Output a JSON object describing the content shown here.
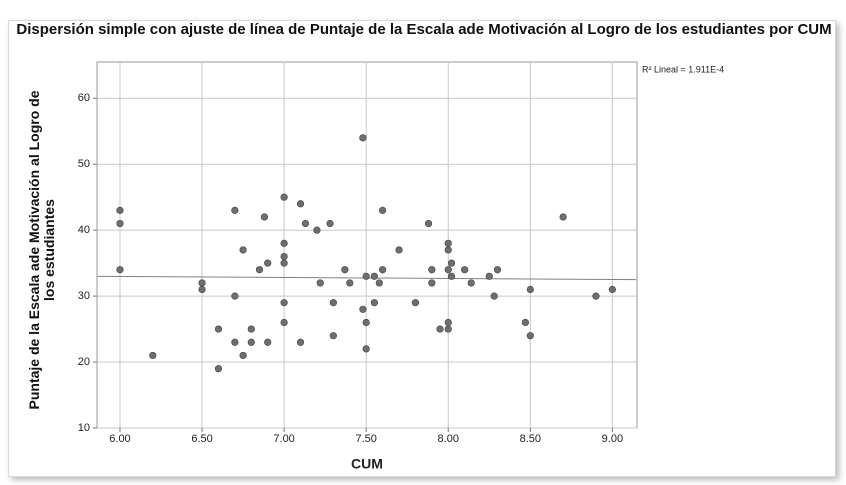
{
  "chart_data": {
    "type": "scatter",
    "title": "Dispersión simple con ajuste de línea de  Puntaje de la Escala ade Motivación al Logro de los estudiantes por CUM",
    "xlabel": "CUM",
    "ylabel": "Puntaje de la Escala ade Motivación al Logro de los estudiantes",
    "annotation": "R² Lineal = 1.911E-4",
    "color": "#6e6e6e",
    "grid": true,
    "xlim": [
      5.86,
      9.15
    ],
    "ylim": [
      10,
      65.5
    ],
    "xticks": [
      {
        "value": 6,
        "label": "6.00"
      },
      {
        "value": 6.5,
        "label": "6.50"
      },
      {
        "value": 7,
        "label": "7.00"
      },
      {
        "value": 7.5,
        "label": "7.50"
      },
      {
        "value": 8,
        "label": "8.00"
      },
      {
        "value": 8.5,
        "label": "8.50"
      },
      {
        "value": 9,
        "label": "9.00"
      }
    ],
    "yticks": [
      10,
      20,
      30,
      40,
      50,
      60
    ],
    "x": [
      6.0,
      6.0,
      6.0,
      6.2,
      6.5,
      6.5,
      6.6,
      6.6,
      6.7,
      6.7,
      6.7,
      6.75,
      6.75,
      6.8,
      6.8,
      6.85,
      6.88,
      6.9,
      6.9,
      7.0,
      7.0,
      7.0,
      7.0,
      7.0,
      7.0,
      7.1,
      7.1,
      7.13,
      7.2,
      7.22,
      7.28,
      7.3,
      7.3,
      7.37,
      7.4,
      7.48,
      7.48,
      7.5,
      7.5,
      7.5,
      7.55,
      7.55,
      7.58,
      7.6,
      7.6,
      7.7,
      7.8,
      7.88,
      7.9,
      7.9,
      7.95,
      8.0,
      8.0,
      8.0,
      8.0,
      8.0,
      8.02,
      8.02,
      8.1,
      8.14,
      8.25,
      8.28,
      8.3,
      8.47,
      8.5,
      8.5,
      8.7,
      8.9,
      9.0
    ],
    "values": [
      43,
      41,
      34,
      21,
      32,
      31,
      25,
      19,
      43,
      30,
      23,
      37,
      21,
      25,
      23,
      34,
      42,
      35,
      23,
      45,
      38,
      36,
      35,
      29,
      26,
      44,
      23,
      41,
      40,
      32,
      41,
      29,
      24,
      34,
      32,
      54,
      28,
      33,
      26,
      22,
      33,
      29,
      32,
      43,
      34,
      37,
      29,
      41,
      34,
      32,
      25,
      38,
      37,
      34,
      26,
      25,
      35,
      33,
      34,
      32,
      33,
      30,
      34,
      26,
      31,
      24,
      42,
      30,
      31
    ],
    "fit_line": {
      "x": [
        5.86,
        9.15
      ],
      "y": [
        33,
        32.5
      ],
      "color": "#808080"
    }
  }
}
